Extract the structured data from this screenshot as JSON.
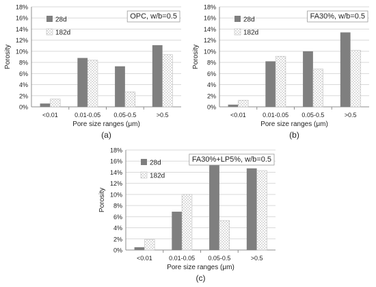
{
  "chart_data": [
    {
      "type": "bar",
      "panel_label": "(a)",
      "annotation": "OPC, w/b=0.5",
      "categories": [
        "<0.01",
        "0.01-0.05",
        "0.05-0.5",
        ">0.5"
      ],
      "series": [
        {
          "name": "28d",
          "values": [
            0.6,
            8.8,
            7.3,
            11.1
          ]
        },
        {
          "name": "182d",
          "values": [
            1.4,
            8.4,
            2.7,
            9.4
          ]
        }
      ],
      "xlabel": "Pore size ranges (μm)",
      "ylabel": "Porosity",
      "ylim": [
        0,
        18
      ],
      "yticks": [
        "0%",
        "2%",
        "4%",
        "6%",
        "8%",
        "10%",
        "12%",
        "14%",
        "16%",
        "18%"
      ],
      "grid": true,
      "legend": "top-left"
    },
    {
      "type": "bar",
      "panel_label": "(b)",
      "annotation": "FA30%, w/b=0.5",
      "categories": [
        "<0.01",
        "0.01-0.05",
        "0.05-0.5",
        ">0.5"
      ],
      "series": [
        {
          "name": "28d",
          "values": [
            0.4,
            8.2,
            10.0,
            13.4
          ]
        },
        {
          "name": "182d",
          "values": [
            1.2,
            9.1,
            6.8,
            10.2
          ]
        }
      ],
      "xlabel": "Pore size ranges (μm)",
      "ylabel": "Porosity",
      "ylim": [
        0,
        18
      ],
      "yticks": [
        "0%",
        "2%",
        "4%",
        "6%",
        "8%",
        "10%",
        "12%",
        "14%",
        "16%",
        "18%"
      ],
      "grid": true,
      "legend": "top-left"
    },
    {
      "type": "bar",
      "panel_label": "(c)",
      "annotation": "FA30%+LP5%, w/b=0.5",
      "categories": [
        "<0.01",
        "0.01-0.05",
        "0.05-0.5",
        ">0.5"
      ],
      "series": [
        {
          "name": "28d",
          "values": [
            0.5,
            6.9,
            15.5,
            14.7
          ]
        },
        {
          "name": "182d",
          "values": [
            1.9,
            10.0,
            5.3,
            14.3
          ]
        }
      ],
      "xlabel": "Pore size ranges (μm)",
      "ylabel": "Porosity",
      "ylim": [
        0,
        18
      ],
      "yticks": [
        "0%",
        "2%",
        "4%",
        "6%",
        "8%",
        "10%",
        "12%",
        "14%",
        "16%",
        "18%"
      ],
      "grid": true,
      "legend": "top-left"
    }
  ],
  "colors": {
    "series_28d": "#7f7f7f",
    "series_182d_pattern": "#bdbdbd",
    "grid": "#d9d9d9",
    "axis": "#8c8c8c"
  }
}
